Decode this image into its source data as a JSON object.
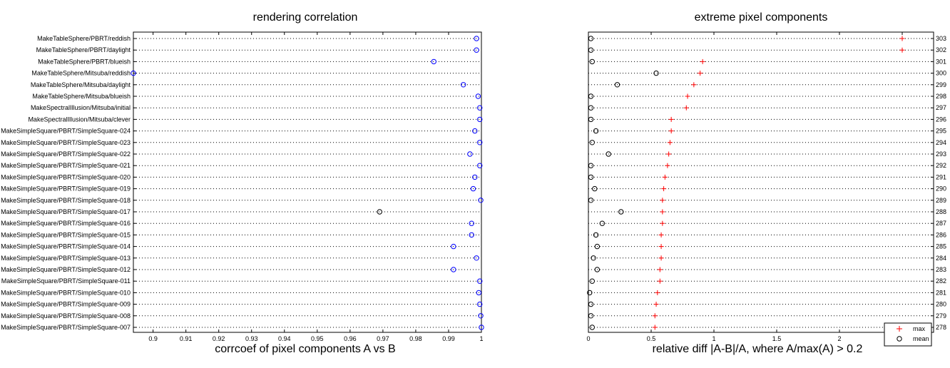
{
  "chart_data": [
    {
      "type": "scatter",
      "title": "rendering correlation",
      "xlabel": "corrcoef of pixel components A vs B",
      "xlim": [
        0.894,
        1.0
      ],
      "xticks": [
        "0.9",
        "0.91",
        "0.92",
        "0.93",
        "0.94",
        "0.95",
        "0.96",
        "0.97",
        "0.98",
        "0.99",
        "1"
      ],
      "xtick_values": [
        0.9,
        0.91,
        0.92,
        0.93,
        0.94,
        0.95,
        0.96,
        0.97,
        0.98,
        0.99,
        1.0
      ],
      "categories": [
        "MakeTableSphere/PBRT/reddish",
        "MakeTableSphere/PBRT/daylight",
        "MakeTableSphere/PBRT/blueish",
        "MakeTableSphere/Mitsuba/reddish",
        "MakeTableSphere/Mitsuba/daylight",
        "MakeTableSphere/Mitsuba/blueish",
        "MakeSpectralIllusion/Mitsuba/initial",
        "MakeSpectralIllusion/Mitsuba/clever",
        "MakeSimpleSquare/PBRT/SimpleSquare-024",
        "MakeSimpleSquare/PBRT/SimpleSquare-023",
        "MakeSimpleSquare/PBRT/SimpleSquare-022",
        "MakeSimpleSquare/PBRT/SimpleSquare-021",
        "MakeSimpleSquare/PBRT/SimpleSquare-020",
        "MakeSimpleSquare/PBRT/SimpleSquare-019",
        "MakeSimpleSquare/PBRT/SimpleSquare-018",
        "MakeSimpleSquare/PBRT/SimpleSquare-017",
        "MakeSimpleSquare/PBRT/SimpleSquare-016",
        "MakeSimpleSquare/PBRT/SimpleSquare-015",
        "MakeSimpleSquare/PBRT/SimpleSquare-014",
        "MakeSimpleSquare/PBRT/SimpleSquare-013",
        "MakeSimpleSquare/PBRT/SimpleSquare-012",
        "MakeSimpleSquare/PBRT/SimpleSquare-011",
        "MakeSimpleSquare/PBRT/SimpleSquare-010",
        "MakeSimpleSquare/PBRT/SimpleSquare-009",
        "MakeSimpleSquare/PBRT/SimpleSquare-008",
        "MakeSimpleSquare/PBRT/SimpleSquare-007"
      ],
      "values": [
        0.9985,
        0.9985,
        0.9855,
        0.894,
        0.9945,
        0.999,
        0.9995,
        0.9995,
        0.998,
        0.9995,
        0.9965,
        0.9995,
        0.998,
        0.9975,
        0.9998,
        0.969,
        0.997,
        0.997,
        0.9915,
        0.9985,
        0.9915,
        0.9995,
        0.9992,
        0.9995,
        0.9998,
        1.0
      ],
      "point_colors": [
        "#0000ff",
        "#0000ff",
        "#0000ff",
        "#0000ff",
        "#0000ff",
        "#0000ff",
        "#0000ff",
        "#0000ff",
        "#0000ff",
        "#0000ff",
        "#0000ff",
        "#0000ff",
        "#0000ff",
        "#0000ff",
        "#0000ff",
        "#000000",
        "#0000ff",
        "#0000ff",
        "#0000ff",
        "#0000ff",
        "#0000ff",
        "#0000ff",
        "#0000ff",
        "#0000ff",
        "#0000ff",
        "#0000ff"
      ],
      "grid": "horizontal dotted"
    },
    {
      "type": "scatter",
      "title": "extreme pixel components",
      "xlabel": "relative diff |A-B|/A, where A/max(A) > 0.2",
      "xlim": [
        0,
        2.75
      ],
      "xticks": [
        "0",
        "0.5",
        "1",
        "1.5",
        "2",
        "2.5"
      ],
      "xtick_values": [
        0,
        0.5,
        1.0,
        1.5,
        2.0,
        2.5
      ],
      "right_tick_labels": [
        "303",
        "302",
        "301",
        "300",
        "299",
        "298",
        "297",
        "296",
        "295",
        "294",
        "293",
        "292",
        "291",
        "290",
        "289",
        "288",
        "287",
        "286",
        "285",
        "284",
        "283",
        "282",
        "281",
        "280",
        "279",
        "278"
      ],
      "series": [
        {
          "name": "max",
          "marker": "+",
          "color": "#ff0000",
          "values": [
            2.5,
            2.5,
            0.91,
            0.89,
            0.84,
            0.79,
            0.78,
            0.66,
            0.66,
            0.65,
            0.64,
            0.63,
            0.61,
            0.6,
            0.59,
            0.59,
            0.59,
            0.58,
            0.58,
            0.58,
            0.57,
            0.57,
            0.55,
            0.54,
            0.53,
            0.53
          ]
        },
        {
          "name": "mean",
          "marker": "o",
          "color": "#000000",
          "values": [
            0.02,
            0.02,
            0.03,
            0.54,
            0.23,
            0.02,
            0.02,
            0.02,
            0.06,
            0.03,
            0.16,
            0.02,
            0.02,
            0.05,
            0.02,
            0.26,
            0.11,
            0.06,
            0.07,
            0.04,
            0.07,
            0.03,
            0.01,
            0.02,
            0.02,
            0.03
          ]
        }
      ],
      "legend": "bottom-right",
      "grid": "horizontal dotted"
    }
  ]
}
